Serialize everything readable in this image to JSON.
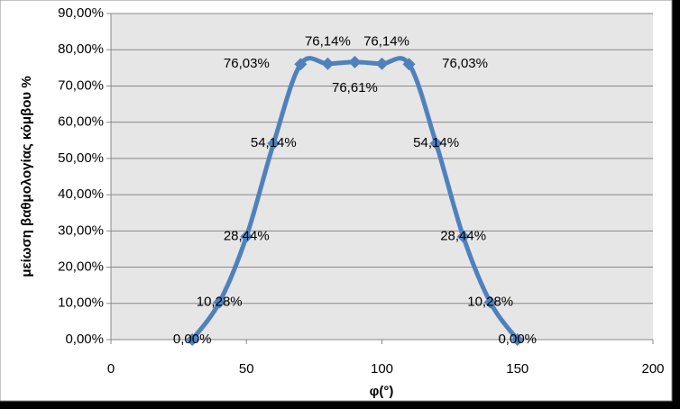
{
  "chart_data": {
    "type": "scatter-smooth",
    "x_label": "φ(°)",
    "y_label": "μείωση βαθμολογίας κόμβου %",
    "x": [
      30,
      40,
      50,
      60,
      70,
      80,
      90,
      100,
      110,
      120,
      130,
      140,
      150
    ],
    "series": [
      {
        "name": "μείωση βαθμολογίας κόμβου",
        "color": "#4f81bd",
        "values": [
          0,
          10.28,
          28.44,
          54.14,
          76.03,
          76.14,
          76.61,
          76.14,
          76.03,
          54.14,
          28.44,
          10.28,
          0
        ],
        "value_labels": [
          "0,00%",
          "10,28%",
          "28,44%",
          "54,14%",
          "76,03%",
          "76,14%",
          "76,61%",
          "76,14%",
          "76,03%",
          "54,14%",
          "28,44%",
          "10,28%",
          "0,00%"
        ]
      }
    ],
    "xlim": [
      0,
      200
    ],
    "xticks": [
      0,
      50,
      100,
      150,
      200
    ],
    "ylim": [
      0,
      90
    ],
    "yticks": [
      {
        "value": 0,
        "label": "0,00%"
      },
      {
        "value": 10,
        "label": "10,00%"
      },
      {
        "value": 20,
        "label": "20,00%"
      },
      {
        "value": 30,
        "label": "30,00%"
      },
      {
        "value": 40,
        "label": "40,00%"
      },
      {
        "value": 50,
        "label": "50,00%"
      },
      {
        "value": 60,
        "label": "60,00%"
      },
      {
        "value": 70,
        "label": "70,00%"
      },
      {
        "value": 80,
        "label": "80,00%"
      },
      {
        "value": 90,
        "label": "90,00%"
      }
    ],
    "grid": true
  }
}
